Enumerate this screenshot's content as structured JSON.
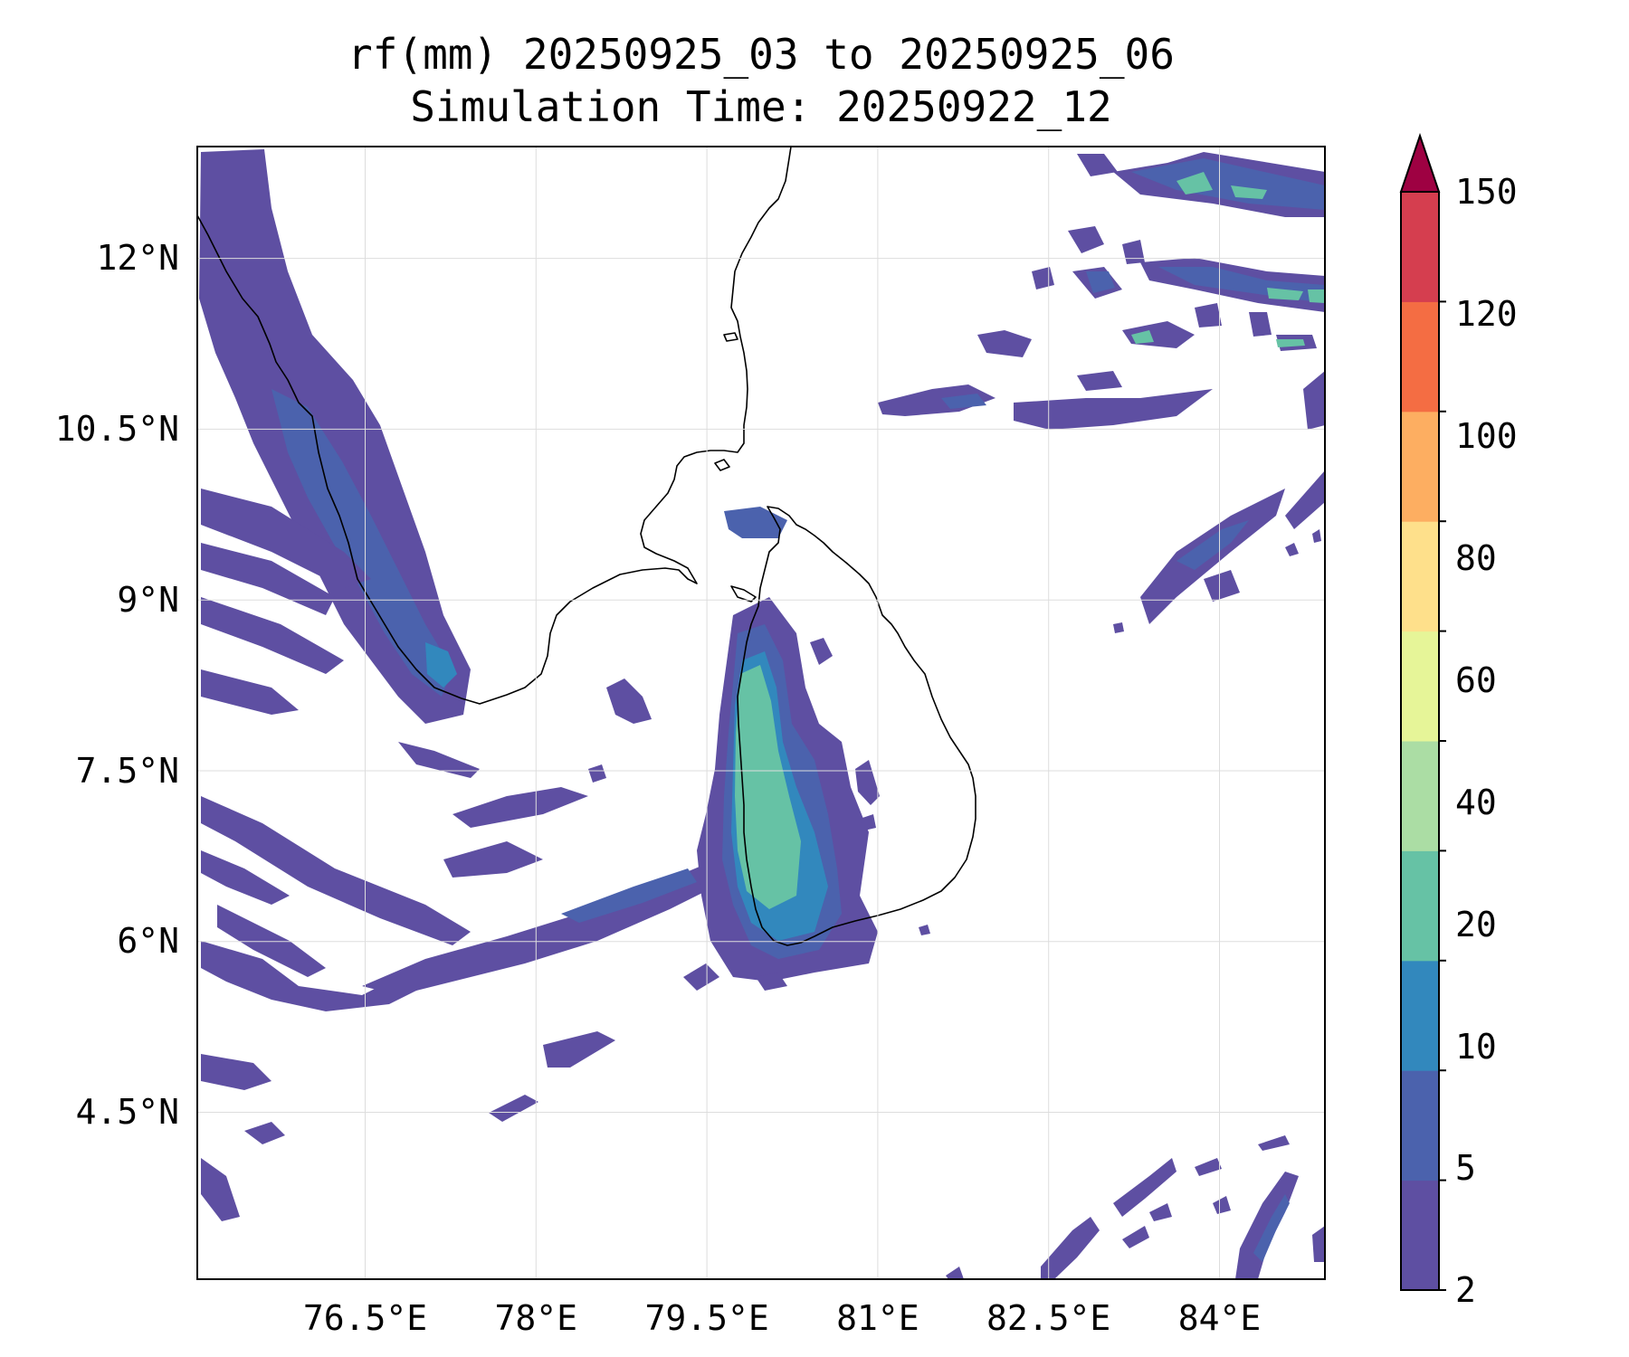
{
  "title": {
    "line1": "rf(mm) 20250925_03 to 20250925_06",
    "line2": "Simulation Time: 20250922_12"
  },
  "axes": {
    "x_ticks": [
      "76.5°E",
      "78°E",
      "79.5°E",
      "81°E",
      "82.5°E",
      "84°E"
    ],
    "y_ticks": [
      "12°N",
      "10.5°N",
      "9°N",
      "7.5°N",
      "6°N",
      "4.5°N"
    ],
    "xlim": [
      75.05,
      84.95
    ],
    "ylim": [
      3.15,
      13.1
    ],
    "x_tick_values": [
      76.5,
      78.0,
      79.5,
      81.0,
      82.5,
      84.0
    ],
    "y_tick_values": [
      12.0,
      10.5,
      9.0,
      7.5,
      6.0,
      4.5
    ],
    "grid": true
  },
  "colorbar": {
    "labels": [
      "2",
      "5",
      "10",
      "20",
      "40",
      "60",
      "80",
      "100",
      "120",
      "150"
    ],
    "levels": [
      2,
      5,
      10,
      20,
      40,
      60,
      80,
      100,
      120,
      150
    ],
    "colors": [
      "#5e4fa2",
      "#4b62ad",
      "#3288bd",
      "#66c2a5",
      "#abdda4",
      "#e6f598",
      "#fee08b",
      "#fdae61",
      "#f46d43",
      "#d53e4f"
    ],
    "extend_color": "#9e0142",
    "extend": "max"
  },
  "map": {
    "variable": "rf(mm)",
    "background_color": "#ffffff",
    "coastline_color": "#000000",
    "rain_colors": {
      "light": "#5e4fa2",
      "moderate": "#4b62ad",
      "heavy": "#3288bd",
      "very_heavy": "#66c2a5"
    }
  }
}
